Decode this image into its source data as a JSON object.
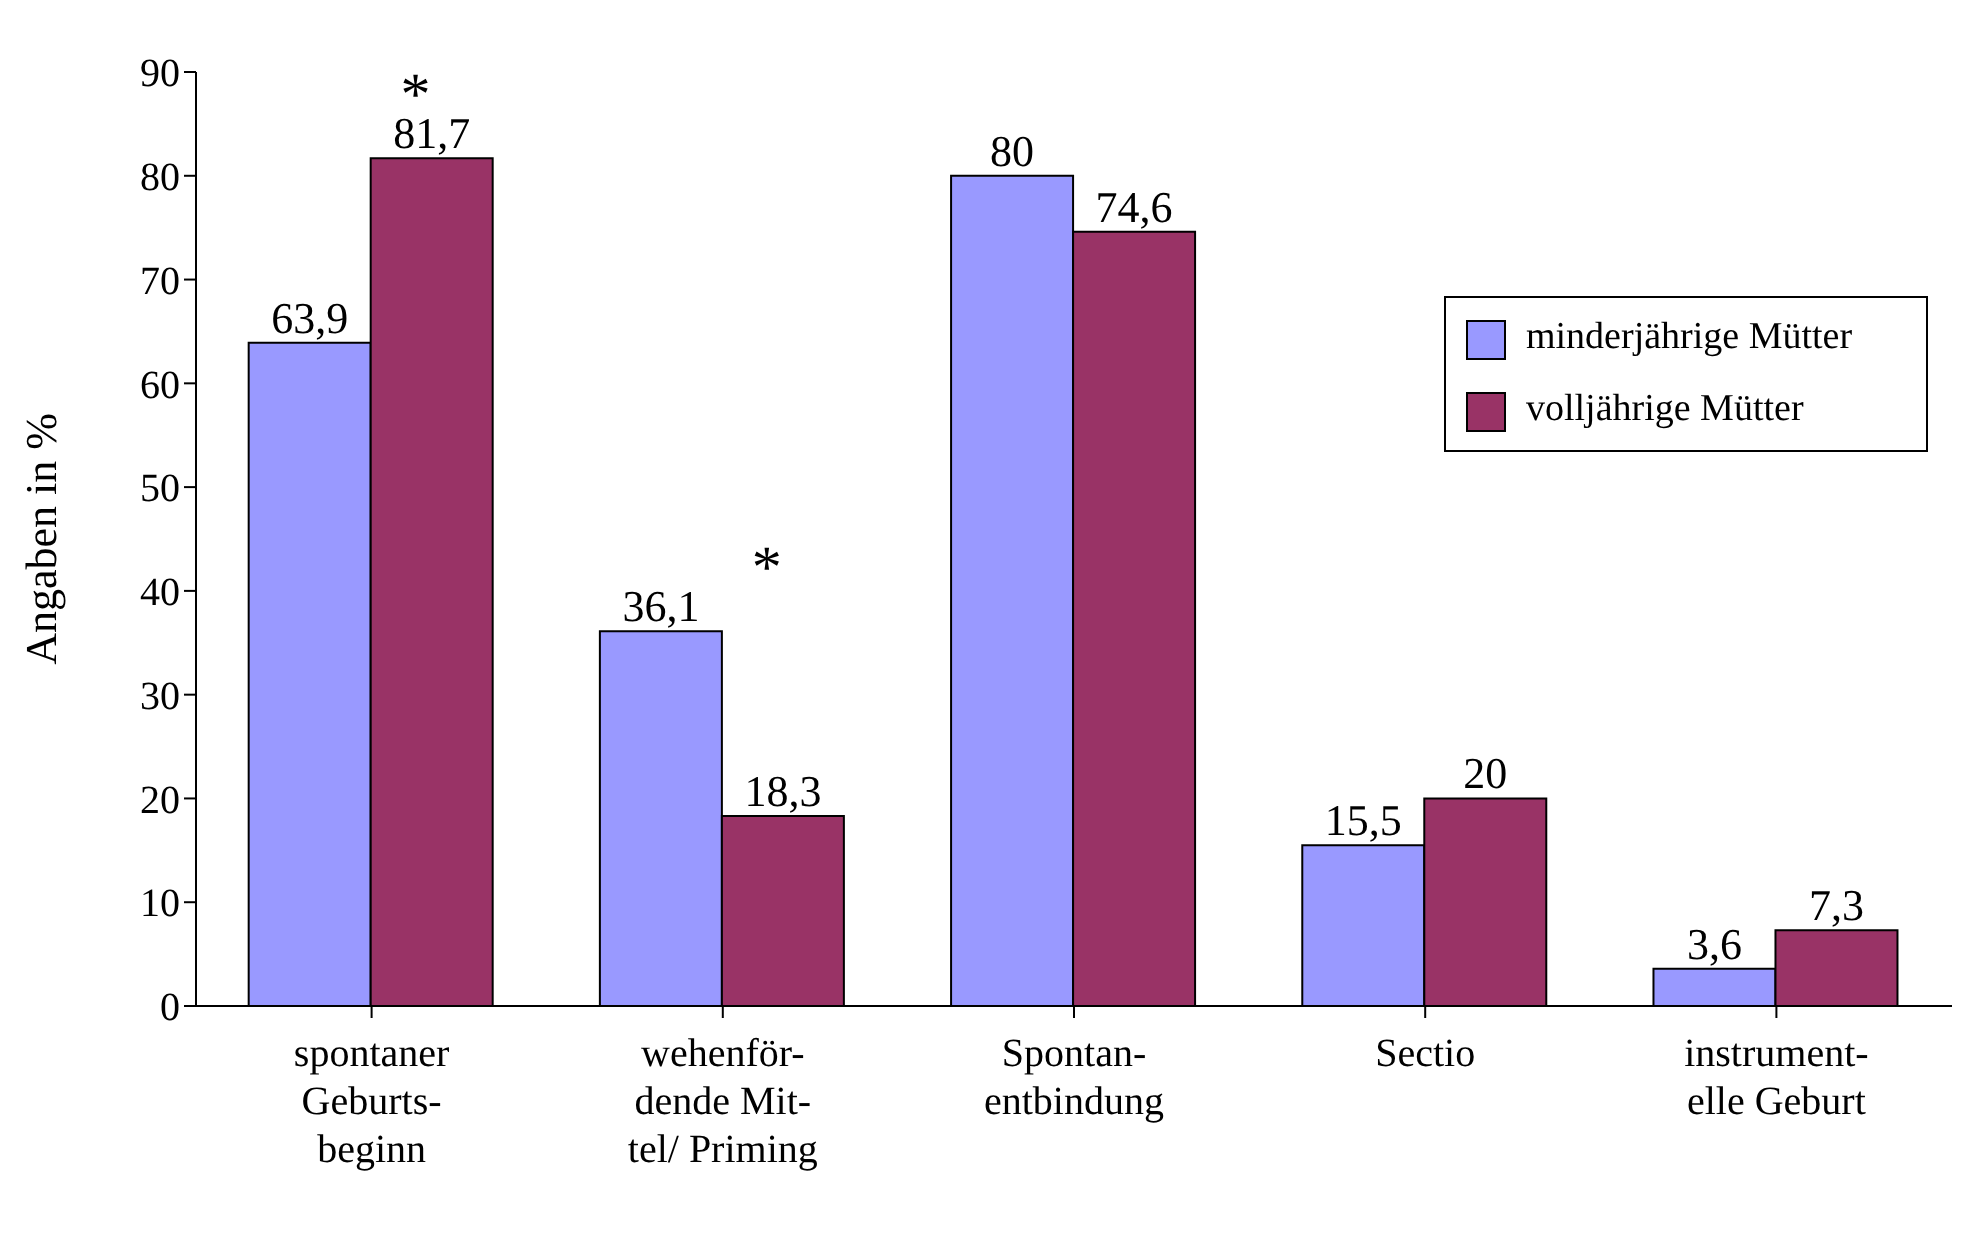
{
  "chart_data": {
    "type": "bar",
    "ylabel": "Angaben in %",
    "categories": [
      "spontaner\nGeburts-\nbeginn",
      "wehenför-\ndende Mit-\ntel/ Priming",
      "Spontan-\nentbindung",
      "Sectio",
      "instrument-\nelle Geburt"
    ],
    "series": [
      {
        "name": "minderjährige Mütter",
        "color": "#9999ff",
        "values": [
          63.9,
          36.1,
          80,
          15.5,
          3.6
        ],
        "value_labels": [
          "63,9",
          "36,1",
          "80",
          "15,5",
          "3,6"
        ]
      },
      {
        "name": "volljährige Mütter",
        "color": "#993366",
        "values": [
          81.7,
          18.3,
          74.6,
          20,
          7.3
        ],
        "value_labels": [
          "81,7",
          "18,3",
          "74,6",
          "20",
          "7,3"
        ]
      }
    ],
    "ylim": [
      0,
      90
    ],
    "yticks": [
      0,
      10,
      20,
      30,
      40,
      50,
      60,
      70,
      80,
      90
    ],
    "legend": "right",
    "annotations": [
      {
        "text": "*",
        "x": "spontaner\nGeburts-\nbeginn",
        "y": 81.7
      },
      {
        "text": "*",
        "x": "wehenför-\ndende Mit-\ntel/ Priming",
        "y": 36.1
      }
    ]
  }
}
